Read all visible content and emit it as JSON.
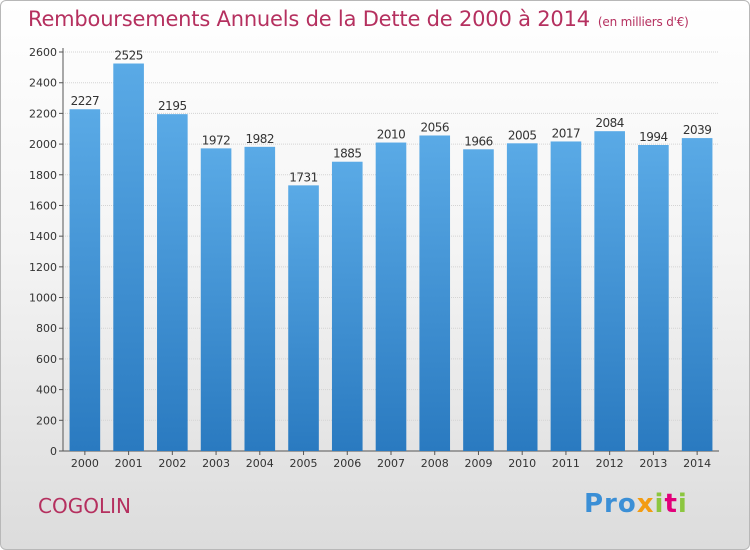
{
  "chart_data": {
    "type": "bar",
    "title": "Remboursements Annuels de la Dette de 2000 à 2014",
    "subtitle": "(en milliers d'€)",
    "categories": [
      "2000",
      "2001",
      "2002",
      "2003",
      "2004",
      "2005",
      "2006",
      "2007",
      "2008",
      "2009",
      "2010",
      "2011",
      "2012",
      "2013",
      "2014"
    ],
    "values": [
      2227,
      2525,
      2195,
      1972,
      1982,
      1731,
      1885,
      2010,
      2056,
      1966,
      2005,
      2017,
      2084,
      1994,
      2039
    ],
    "ylim": [
      0,
      2600
    ],
    "yticks": [
      0,
      200,
      400,
      600,
      800,
      1000,
      1200,
      1400,
      1600,
      1800,
      2000,
      2200,
      2400,
      2600
    ],
    "grid": true,
    "xlabel": "",
    "ylabel": "",
    "colors": {
      "bar_top": "#5aaae6",
      "bar_bottom": "#2a7ac0",
      "text": "#b5305f"
    }
  },
  "footer": {
    "city": "COGOLIN",
    "brand": "Proxiti"
  }
}
